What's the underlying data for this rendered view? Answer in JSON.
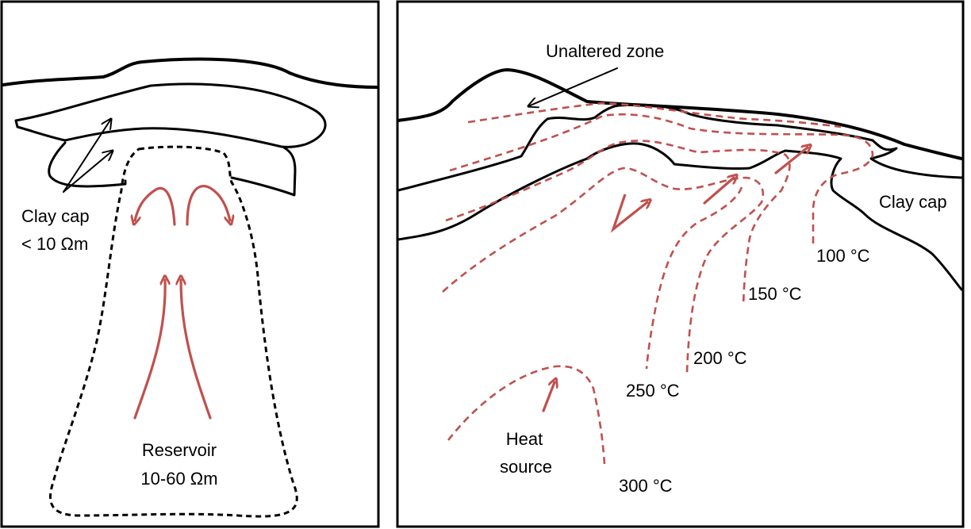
{
  "colors": {
    "isotherm": "#c0504d",
    "outline": "#000000",
    "background": "#ffffff"
  },
  "left_panel": {
    "clay_cap_label": "Clay cap",
    "clay_cap_resistivity": "< 10 Ωm",
    "reservoir_label": "Reservoir",
    "reservoir_resistivity": "10-60 Ωm"
  },
  "right_panel": {
    "unaltered_zone_label": "Unaltered zone",
    "clay_cap_label": "Clay cap",
    "heat_source_label_line1": "Heat",
    "heat_source_label_line2": "source",
    "isotherms": [
      {
        "label": "100 °C"
      },
      {
        "label": "150 °C"
      },
      {
        "label": "200 °C"
      },
      {
        "label": "250 °C"
      },
      {
        "label": "300 °C"
      }
    ]
  }
}
